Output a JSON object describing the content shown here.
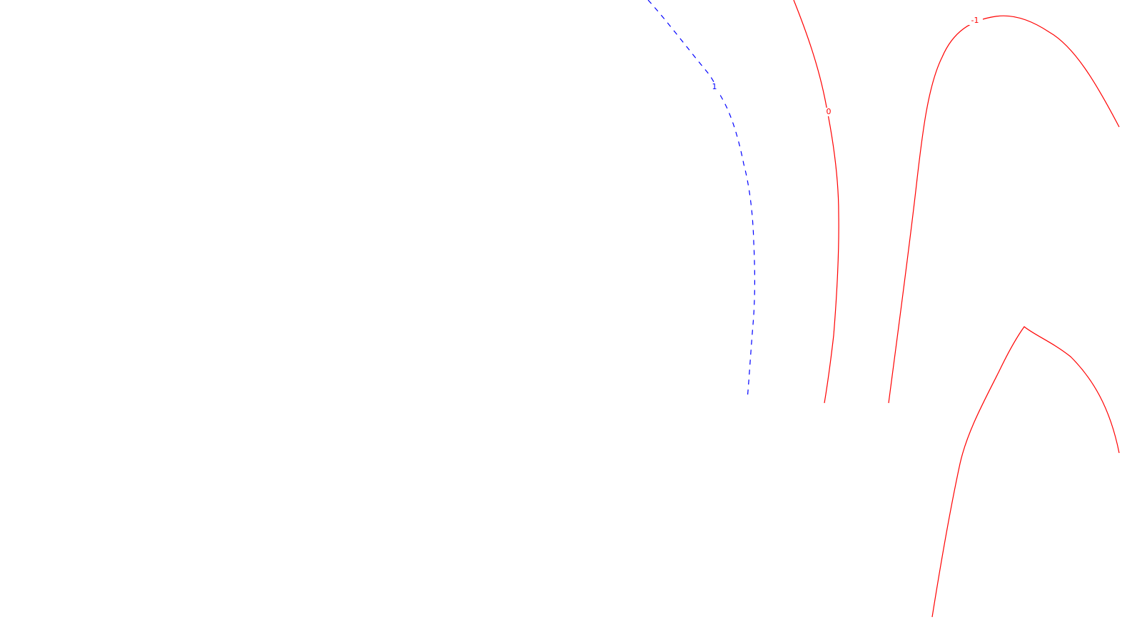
{
  "map": {
    "background": "#ffffff",
    "contours": [
      {
        "id": "contour-1",
        "label": "1",
        "color": "#0000ff",
        "style": "dashed"
      },
      {
        "id": "contour-0",
        "label": "0",
        "color": "#ff0000",
        "style": "solid"
      },
      {
        "id": "contour-neg1",
        "label": "-1",
        "color": "#ff0000",
        "style": "solid"
      },
      {
        "id": "contour-neg1-lower",
        "label": "",
        "color": "#ff0000",
        "style": "solid"
      }
    ]
  }
}
